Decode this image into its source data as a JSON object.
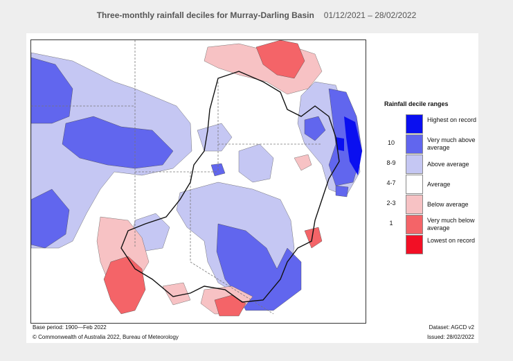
{
  "header": {
    "title": "Three-monthly rainfall deciles for Murray-Darling Basin",
    "period": "01/12/2021 – 28/02/2022"
  },
  "legend": {
    "title": "Rainfall decile ranges",
    "items": [
      {
        "code": "",
        "label": "Highest on record",
        "color": "#0a0ff0"
      },
      {
        "code": "10",
        "label": "Very much above average",
        "color": "#6166ee"
      },
      {
        "code": "8-9",
        "label": "Above average",
        "color": "#c5c7f3"
      },
      {
        "code": "4-7",
        "label": "Average",
        "color": "#ffffff"
      },
      {
        "code": "2-3",
        "label": "Below average",
        "color": "#f7c2c4"
      },
      {
        "code": "1",
        "label": "Very much below average",
        "color": "#f46468"
      },
      {
        "code": "",
        "label": "Lowest on record",
        "color": "#f20f25"
      }
    ]
  },
  "footer": {
    "base_period": "Base period: 1900—Feb 2022",
    "dataset": "Dataset: AGCD v2",
    "copyright": "© Commonwealth of Australia 2022, Bureau of Meteorology",
    "issued": "Issued: 28/02/2022"
  },
  "colors": {
    "page_bg": "#eeeeee",
    "title_text": "#555555",
    "basin_outline": "#111111",
    "state_border": "#777777"
  }
}
